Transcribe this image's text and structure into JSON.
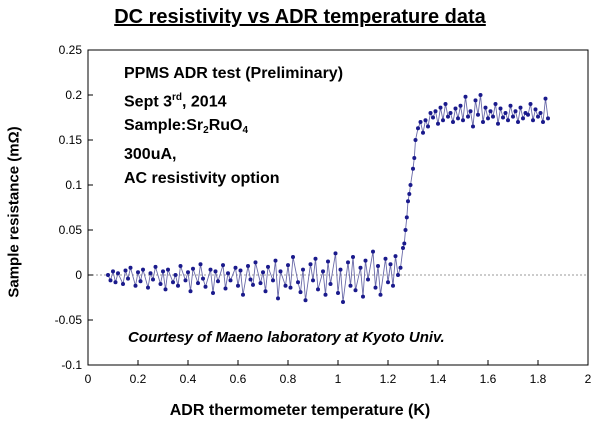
{
  "chart_data": {
    "type": "scatter",
    "title": "DC resistivity vs ADR temperature data",
    "xlabel": "ADR thermometer temperature (K)",
    "ylabel": "Sample resistance (mΩ)",
    "xlim": [
      0,
      2
    ],
    "ylim": [
      -0.1,
      0.25
    ],
    "xticks": [
      "0",
      "0.2",
      "0.4",
      "0.6",
      "0.8",
      "1",
      "1.2",
      "1.4",
      "1.6",
      "1.8",
      "2"
    ],
    "yticks": [
      "-0.1",
      "-0.05",
      "0",
      "0.05",
      "0.1",
      "0.15",
      "0.2",
      "0.25"
    ],
    "grid": false,
    "zero_reference_line": true,
    "marker_color": "#1a1a8c",
    "line_color": "#6a6aa8",
    "series": [
      {
        "x": [
          0.08,
          0.09,
          0.1,
          0.11,
          0.12,
          0.14,
          0.15,
          0.16,
          0.17,
          0.19,
          0.2,
          0.21,
          0.22,
          0.24,
          0.25,
          0.26,
          0.27,
          0.29,
          0.3,
          0.31,
          0.32,
          0.34,
          0.35,
          0.36,
          0.37,
          0.39,
          0.4,
          0.41,
          0.42,
          0.44,
          0.45,
          0.46,
          0.47,
          0.49,
          0.5,
          0.51,
          0.52,
          0.54,
          0.55,
          0.56,
          0.57,
          0.59,
          0.6,
          0.61,
          0.62,
          0.64,
          0.65,
          0.66,
          0.67,
          0.69,
          0.7,
          0.71,
          0.72,
          0.74,
          0.75,
          0.76,
          0.77,
          0.79,
          0.8,
          0.81,
          0.82,
          0.84,
          0.85,
          0.86,
          0.87,
          0.89,
          0.9,
          0.91,
          0.92,
          0.94,
          0.95,
          0.96,
          0.97,
          0.99,
          1.0,
          1.01,
          1.02,
          1.04,
          1.05,
          1.06,
          1.07,
          1.09,
          1.1,
          1.11,
          1.12,
          1.14,
          1.15,
          1.16,
          1.17,
          1.19,
          1.2,
          1.21,
          1.22,
          1.23,
          1.24,
          1.25,
          1.26,
          1.265,
          1.27,
          1.275,
          1.28,
          1.285,
          1.29,
          1.3,
          1.305,
          1.31,
          1.32,
          1.33,
          1.34,
          1.35,
          1.36,
          1.37,
          1.38,
          1.39,
          1.4,
          1.41,
          1.42,
          1.43,
          1.44,
          1.45,
          1.46,
          1.47,
          1.48,
          1.49,
          1.5,
          1.51,
          1.52,
          1.53,
          1.54,
          1.55,
          1.56,
          1.57,
          1.58,
          1.59,
          1.6,
          1.61,
          1.62,
          1.63,
          1.64,
          1.65,
          1.66,
          1.67,
          1.68,
          1.69,
          1.7,
          1.71,
          1.72,
          1.73,
          1.74,
          1.75,
          1.76,
          1.77,
          1.78,
          1.79,
          1.8,
          1.81,
          1.82,
          1.83,
          1.84
        ],
        "y": [
          0.0,
          -0.006,
          0.004,
          -0.008,
          0.002,
          -0.01,
          0.005,
          -0.004,
          0.008,
          -0.012,
          0.003,
          -0.007,
          0.006,
          -0.014,
          0.002,
          -0.005,
          0.009,
          -0.01,
          0.004,
          -0.016,
          0.006,
          -0.008,
          0.0,
          -0.012,
          0.01,
          -0.006,
          0.003,
          -0.018,
          0.007,
          -0.009,
          0.012,
          -0.004,
          -0.013,
          0.006,
          -0.02,
          0.004,
          -0.007,
          0.011,
          -0.015,
          0.002,
          -0.006,
          0.008,
          -0.012,
          0.005,
          -0.022,
          0.01,
          -0.005,
          -0.011,
          0.014,
          -0.009,
          0.003,
          -0.018,
          0.009,
          -0.006,
          0.016,
          -0.026,
          0.004,
          -0.012,
          0.011,
          -0.014,
          0.02,
          -0.008,
          -0.019,
          0.006,
          -0.028,
          0.012,
          -0.006,
          0.018,
          -0.016,
          0.004,
          -0.022,
          0.015,
          -0.01,
          0.024,
          -0.02,
          0.006,
          -0.03,
          0.014,
          -0.012,
          0.02,
          -0.017,
          0.008,
          -0.024,
          0.016,
          -0.005,
          0.026,
          -0.014,
          0.01,
          -0.022,
          0.018,
          -0.008,
          0.012,
          -0.012,
          0.021,
          0.0,
          0.008,
          0.03,
          0.035,
          0.05,
          0.064,
          0.082,
          0.09,
          0.1,
          0.118,
          0.13,
          0.15,
          0.163,
          0.17,
          0.158,
          0.172,
          0.165,
          0.18,
          0.175,
          0.182,
          0.168,
          0.186,
          0.172,
          0.19,
          0.176,
          0.18,
          0.17,
          0.185,
          0.174,
          0.188,
          0.172,
          0.198,
          0.176,
          0.182,
          0.165,
          0.194,
          0.178,
          0.2,
          0.17,
          0.186,
          0.174,
          0.182,
          0.176,
          0.19,
          0.168,
          0.185,
          0.175,
          0.18,
          0.172,
          0.188,
          0.176,
          0.182,
          0.17,
          0.186,
          0.174,
          0.18,
          0.178,
          0.19,
          0.172,
          0.184,
          0.176,
          0.18,
          0.17,
          0.196,
          0.174
        ]
      }
    ]
  },
  "annotations": {
    "line1": "PPMS ADR test (Preliminary)",
    "line2_prefix": "Sept 3",
    "line2_sup": "rd",
    "line2_suffix": ", 2014",
    "line3_prefix": "Sample:Sr",
    "line3_sub1": "2",
    "line3_mid": "RuO",
    "line3_sub2": "4",
    "line4": "300uA,",
    "line5": "AC resistivity option",
    "courtesy": "Courtesy of Maeno laboratory at  Kyoto Univ."
  }
}
